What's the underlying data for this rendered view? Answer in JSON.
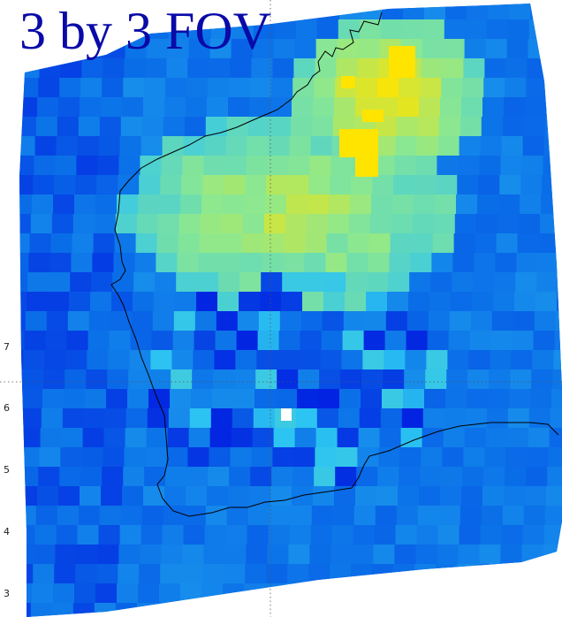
{
  "title": "3 by 3 FOV",
  "y_tick_labels": [
    "7",
    "6",
    "5",
    "4",
    "3"
  ],
  "colormap": {
    "low": "#0010e0",
    "mid_low": "#0a6ee8",
    "mid": "#2cc4f2",
    "mid_high": "#8ce890",
    "high": "#ffe400"
  },
  "marker_color": "#ffffff",
  "coastline_color": "#000000",
  "grid": true
}
